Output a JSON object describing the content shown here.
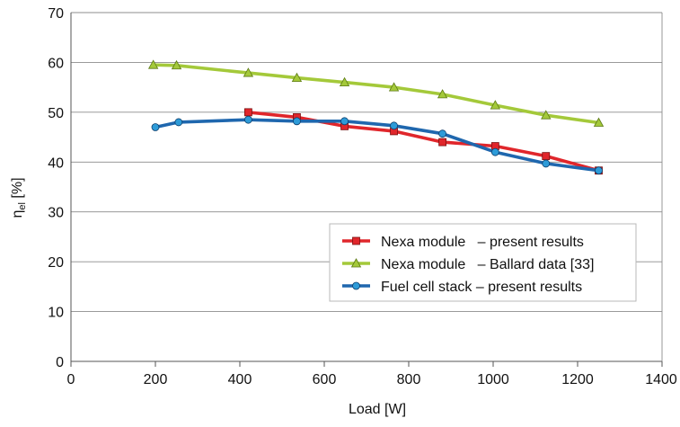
{
  "chart_data": {
    "type": "line",
    "xlabel": "Load [W]",
    "ylabel_main": "η",
    "ylabel_sub": "el",
    "ylabel_unit": " [%]",
    "xlim": [
      0,
      1400
    ],
    "ylim": [
      0,
      70
    ],
    "xticks": [
      0,
      200,
      400,
      600,
      800,
      1000,
      1200,
      1400
    ],
    "yticks": [
      0,
      10,
      20,
      30,
      40,
      50,
      60,
      70
    ],
    "grid": "horizontal",
    "legend_position": "bottom-right",
    "series": [
      {
        "name": "Nexa module   – present results",
        "color": "#e0262b",
        "marker": "square",
        "x": [
          420,
          535,
          648,
          765,
          880,
          1005,
          1125,
          1250
        ],
        "y": [
          50.0,
          49.0,
          47.2,
          46.2,
          44.0,
          43.2,
          41.2,
          38.3
        ]
      },
      {
        "name": "Nexa module   – Ballard data [33]",
        "color": "#a4c93a",
        "marker": "triangle",
        "x": [
          195,
          250,
          420,
          535,
          648,
          765,
          880,
          1005,
          1125,
          1250
        ],
        "y": [
          59.5,
          59.4,
          57.9,
          56.9,
          56.0,
          55.0,
          53.6,
          51.4,
          49.4,
          47.9
        ]
      },
      {
        "name": "Fuel cell stack – present results",
        "color": "#1f67ae",
        "marker": "circle",
        "x": [
          200,
          255,
          420,
          535,
          648,
          765,
          880,
          1005,
          1125,
          1250
        ],
        "y": [
          47.0,
          48.0,
          48.5,
          48.2,
          48.2,
          47.3,
          45.7,
          42.0,
          39.7,
          38.3
        ]
      }
    ]
  }
}
